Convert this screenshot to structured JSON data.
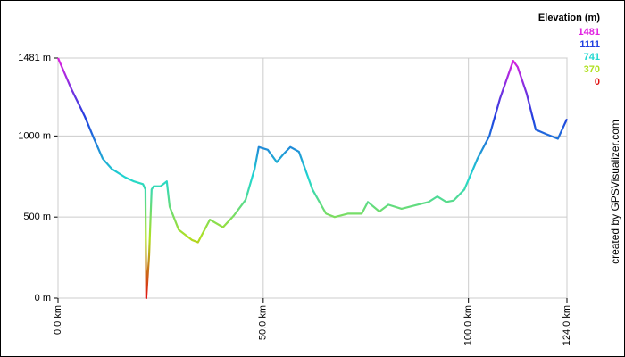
{
  "chart_data": {
    "type": "line",
    "title": "Elevation (m)",
    "credit": "created by GPSVisualizer.com",
    "x": [
      0,
      3.3,
      6.5,
      8.7,
      10.9,
      13.1,
      16.3,
      18.5,
      20.7,
      21.3,
      21.5,
      22.2,
      22.8,
      23.3,
      25.0,
      26.5,
      27.2,
      29.4,
      32.6,
      34.1,
      37.0,
      40.2,
      42.8,
      45.7,
      47.9,
      48.9,
      51.1,
      53.3,
      55.0,
      56.6,
      58.7,
      62.0,
      65.3,
      67.4,
      70.7,
      74.0,
      75.5,
      78.3,
      80.5,
      83.7,
      87.0,
      90.3,
      92.4,
      94.6,
      96.4,
      99.0,
      102.2,
      105.1,
      107.7,
      110.9,
      112.0,
      114.2,
      116.4,
      119.0,
      121.8,
      124.0
    ],
    "series": [
      {
        "name": "Elevation",
        "values": [
          1481,
          1287,
          1122,
          987,
          860,
          797,
          746,
          720,
          703,
          670,
          0,
          266,
          670,
          690,
          690,
          720,
          564,
          422,
          359,
          344,
          484,
          437,
          508,
          606,
          797,
          932,
          915,
          839,
          890,
          932,
          903,
          670,
          521,
          500,
          521,
          521,
          593,
          534,
          576,
          551,
          572,
          593,
          627,
          593,
          602,
          670,
          860,
          1000,
          1232,
          1464,
          1425,
          1260,
          1039,
          1011,
          983,
          1105
        ]
      }
    ],
    "color_scale": [
      {
        "value": 1481,
        "color": "#e020e0"
      },
      {
        "value": 1111,
        "color": "#2040e0"
      },
      {
        "value": 741,
        "color": "#20d8d0"
      },
      {
        "value": 370,
        "color": "#b0e020"
      },
      {
        "value": 0,
        "color": "#e01010"
      }
    ],
    "xlim": [
      0,
      124
    ],
    "ylim": [
      0,
      1481
    ],
    "xticks": [
      {
        "value": 0,
        "label": "0.0 km"
      },
      {
        "value": 50,
        "label": "50.0 km"
      },
      {
        "value": 100,
        "label": "100.0 km"
      },
      {
        "value": 124,
        "label": "124.0 km"
      }
    ],
    "yticks": [
      {
        "value": 0,
        "label": "0 m"
      },
      {
        "value": 500,
        "label": "500 m"
      },
      {
        "value": 1000,
        "label": "1000 m"
      },
      {
        "value": 1481,
        "label": "1481 m"
      }
    ],
    "grid": true
  }
}
